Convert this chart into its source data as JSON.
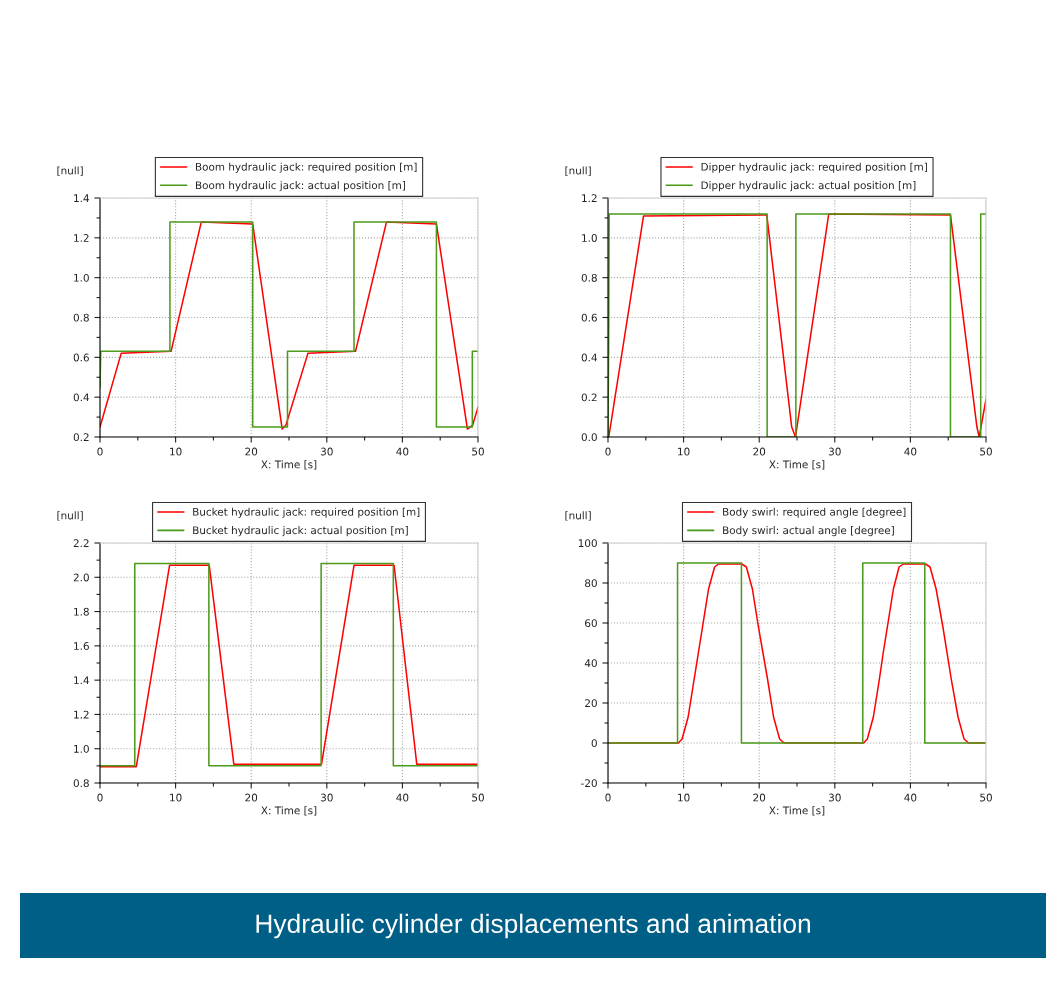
{
  "chart_data": [
    {
      "type": "line",
      "xlabel": "X: Time [s]",
      "ylabel": "[null]",
      "xlim": [
        0,
        50
      ],
      "ylim": [
        0.2,
        1.4
      ],
      "xticks": [
        0,
        {
          "value": 5,
          "label": null
        },
        10,
        {
          "value": 15,
          "label": null
        },
        20,
        {
          "value": 25,
          "label": null
        },
        30,
        {
          "value": 35,
          "label": null
        },
        40,
        {
          "value": 45,
          "label": null
        },
        50
      ],
      "yticks": [
        {
          "value": 0.2,
          "label": "0.2"
        },
        {
          "value": 0.3,
          "label": null
        },
        {
          "value": 0.4,
          "label": "0.4"
        },
        {
          "value": 0.5,
          "label": null
        },
        {
          "value": 0.6,
          "label": "0.6"
        },
        {
          "value": 0.7,
          "label": null
        },
        {
          "value": 0.8,
          "label": "0.8"
        },
        {
          "value": 0.9,
          "label": null
        },
        {
          "value": 1.0,
          "label": "1.0"
        },
        {
          "value": 1.1,
          "label": null
        },
        {
          "value": 1.2,
          "label": "1.2"
        },
        {
          "value": 1.3,
          "label": null
        },
        {
          "value": 1.4,
          "label": "1.4"
        }
      ],
      "grid": true,
      "legend": "top",
      "line_style": "solid",
      "marker": "none",
      "annotations": [
        "Hydraulic cylinder displacements and animation"
      ],
      "series": [
        {
          "name": "Boom hydraulic jack: required position [m]",
          "color": "#ff0000",
          "x": [
            0,
            2.8,
            9.4,
            13.4,
            20.2,
            24.1,
            24.6,
            27.5,
            33.8,
            37.9,
            44.5,
            48.6,
            49.3,
            50
          ],
          "values": [
            0.25,
            0.62,
            0.63,
            1.28,
            1.27,
            0.24,
            0.26,
            0.62,
            0.63,
            1.28,
            1.27,
            0.24,
            0.26,
            0.35
          ]
        },
        {
          "name": "Boom hydraulic jack: actual position [m]",
          "color": "#4c9a1a",
          "x": [
            0,
            0.1,
            9.25,
            9.25,
            20.2,
            20.2,
            24.8,
            24.8,
            33.6,
            33.6,
            44.5,
            44.5,
            49.25,
            49.25,
            50
          ],
          "values": [
            0.45,
            0.63,
            0.63,
            1.28,
            1.28,
            0.25,
            0.25,
            0.63,
            0.63,
            1.28,
            1.28,
            0.25,
            0.25,
            0.63,
            0.63
          ]
        }
      ]
    },
    {
      "type": "line",
      "xlabel": "X: Time [s]",
      "ylabel": "[null]",
      "xlim": [
        0,
        50
      ],
      "ylim": [
        0.0,
        1.2
      ],
      "xticks": [
        0,
        {
          "value": 5,
          "label": null
        },
        10,
        {
          "value": 15,
          "label": null
        },
        20,
        {
          "value": 25,
          "label": null
        },
        30,
        {
          "value": 35,
          "label": null
        },
        40,
        {
          "value": 45,
          "label": null
        },
        50
      ],
      "yticks": [
        {
          "value": 0.0,
          "label": "0.0"
        },
        {
          "value": 0.1,
          "label": null
        },
        {
          "value": 0.2,
          "label": "0.2"
        },
        {
          "value": 0.3,
          "label": null
        },
        {
          "value": 0.4,
          "label": "0.4"
        },
        {
          "value": 0.5,
          "label": null
        },
        {
          "value": 0.6,
          "label": "0.6"
        },
        {
          "value": 0.7,
          "label": null
        },
        {
          "value": 0.8,
          "label": "0.8"
        },
        {
          "value": 0.9,
          "label": null
        },
        {
          "value": 1.0,
          "label": "1.0"
        },
        {
          "value": 1.1,
          "label": null
        },
        {
          "value": 1.2,
          "label": "1.2"
        }
      ],
      "grid": true,
      "legend": "top",
      "line_style": "solid",
      "marker": "none",
      "series": [
        {
          "name": "Dipper hydraulic jack: required position [m]",
          "color": "#ff0000",
          "x": [
            0.1,
            4.7,
            21.0,
            24.3,
            24.8,
            29.2,
            45.3,
            48.8,
            49.1,
            50
          ],
          "values": [
            0.0,
            1.11,
            1.115,
            0.05,
            0.0,
            1.12,
            1.115,
            0.05,
            0.0,
            0.19
          ]
        },
        {
          "name": "Dipper hydraulic jack: actual position [m]",
          "color": "#4c9a1a",
          "x": [
            0,
            0.1,
            0.15,
            21.05,
            21.05,
            24.85,
            24.85,
            45.3,
            45.3,
            49.3,
            49.3,
            50
          ],
          "values": [
            0.0,
            0.55,
            1.12,
            1.12,
            0.0,
            0.0,
            1.12,
            1.12,
            0.0,
            0.0,
            1.12,
            1.12
          ]
        }
      ]
    },
    {
      "type": "line",
      "xlabel": "X: Time [s]",
      "ylabel": "[null]",
      "xlim": [
        0,
        50
      ],
      "ylim": [
        0.8,
        2.2
      ],
      "xticks": [
        0,
        {
          "value": 5,
          "label": null
        },
        10,
        {
          "value": 15,
          "label": null
        },
        20,
        {
          "value": 25,
          "label": null
        },
        30,
        {
          "value": 35,
          "label": null
        },
        40,
        {
          "value": 45,
          "label": null
        },
        50
      ],
      "yticks": [
        {
          "value": 0.8,
          "label": "0.8"
        },
        {
          "value": 0.9,
          "label": null
        },
        {
          "value": 1.0,
          "label": "1.0"
        },
        {
          "value": 1.1,
          "label": null
        },
        {
          "value": 1.2,
          "label": "1.2"
        },
        {
          "value": 1.3,
          "label": null
        },
        {
          "value": 1.4,
          "label": "1.4"
        },
        {
          "value": 1.5,
          "label": null
        },
        {
          "value": 1.6,
          "label": "1.6"
        },
        {
          "value": 1.7,
          "label": null
        },
        {
          "value": 1.8,
          "label": "1.8"
        },
        {
          "value": 1.9,
          "label": null
        },
        {
          "value": 2.0,
          "label": "2.0"
        },
        {
          "value": 2.1,
          "label": null
        },
        {
          "value": 2.2,
          "label": "2.2"
        }
      ],
      "grid": true,
      "legend": "top",
      "line_style": "solid",
      "marker": "none",
      "series": [
        {
          "name": "Bucket hydraulic jack: required position [m]",
          "color": "#ff0000",
          "x": [
            0,
            4.8,
            9.2,
            14.45,
            17.7,
            29.3,
            33.6,
            38.9,
            41.9,
            50
          ],
          "values": [
            0.895,
            0.895,
            2.07,
            2.07,
            0.91,
            0.91,
            2.07,
            2.07,
            0.91,
            0.91
          ]
        },
        {
          "name": "Bucket hydraulic jack: actual position [m]",
          "color": "#4c9a1a",
          "x": [
            0,
            4.6,
            4.6,
            14.4,
            14.4,
            29.25,
            29.25,
            38.8,
            38.8,
            50
          ],
          "values": [
            0.9,
            0.9,
            2.08,
            2.08,
            0.9,
            0.9,
            2.08,
            2.08,
            0.9,
            0.9
          ]
        }
      ]
    },
    {
      "type": "line",
      "xlabel": "X: Time [s]",
      "ylabel": "[null]",
      "xlim": [
        0,
        50
      ],
      "ylim": [
        -20,
        100
      ],
      "xticks": [
        0,
        {
          "value": 5,
          "label": null
        },
        10,
        {
          "value": 15,
          "label": null
        },
        20,
        {
          "value": 25,
          "label": null
        },
        30,
        {
          "value": 35,
          "label": null
        },
        40,
        {
          "value": 45,
          "label": null
        },
        50
      ],
      "yticks": [
        -20,
        {
          "value": -10,
          "label": null
        },
        0,
        {
          "value": 10,
          "label": null
        },
        20,
        {
          "value": 30,
          "label": null
        },
        40,
        {
          "value": 50,
          "label": null
        },
        60,
        {
          "value": 70,
          "label": null
        },
        80,
        {
          "value": 90,
          "label": null
        },
        100
      ],
      "grid": true,
      "legend": "top",
      "line_style": "solid",
      "marker": "none",
      "series": [
        {
          "name": "Body swirl: required angle [degree]",
          "color": "#ff0000",
          "x": [
            0,
            9.3,
            9.8,
            10.6,
            11.4,
            11.95,
            12.5,
            13.3,
            14.1,
            14.6,
            17.7,
            18.3,
            19.1,
            19.9,
            20.5,
            21.1,
            21.9,
            22.7,
            23.3,
            33.8,
            34.3,
            35.1,
            35.9,
            36.4,
            36.95,
            37.75,
            38.5,
            39.05,
            42.0,
            42.6,
            43.4,
            44.3,
            44.85,
            45.4,
            46.3,
            47.1,
            47.7,
            50
          ],
          "values": [
            0,
            0,
            2,
            13,
            32,
            45,
            58,
            77,
            88,
            89.5,
            89.5,
            88,
            77,
            58,
            45,
            32,
            13,
            2,
            0,
            0,
            2,
            13,
            32,
            45,
            58,
            77,
            88,
            89.5,
            89.5,
            88,
            77,
            58,
            45,
            32,
            13,
            2,
            0,
            0
          ]
        },
        {
          "name": "Body swirl: actual angle [degree]",
          "color": "#4c9a1a",
          "x": [
            0,
            9.2,
            9.2,
            17.65,
            17.65,
            33.7,
            33.7,
            41.9,
            41.9,
            50
          ],
          "values": [
            0,
            0,
            90,
            90,
            0,
            0,
            90,
            90,
            0,
            0
          ]
        }
      ]
    }
  ]
}
